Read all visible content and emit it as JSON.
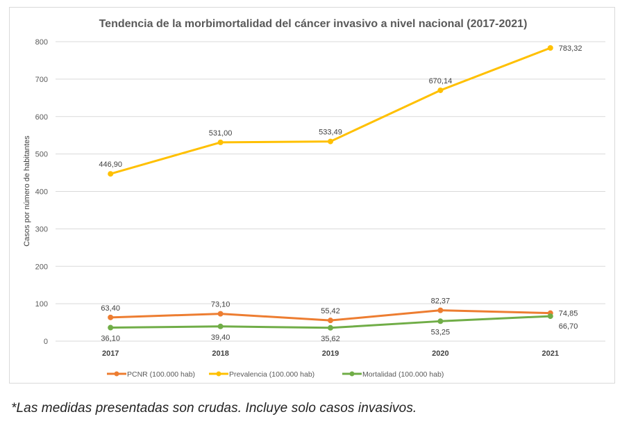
{
  "chart_data": {
    "type": "line",
    "title": "Tendencia de la morbimortalidad del cáncer invasivo a nivel nacional (2017-2021)",
    "xlabel": "",
    "ylabel": "Casos por número de habitantes",
    "categories": [
      "2017",
      "2018",
      "2019",
      "2020",
      "2021"
    ],
    "ylim": [
      0,
      800
    ],
    "yticks": [
      0,
      100,
      200,
      300,
      400,
      500,
      600,
      700,
      800
    ],
    "grid": true,
    "legend_position": "bottom",
    "series": [
      {
        "name": "PCNR (100.000 hab)",
        "color": "#ED7D31",
        "values": [
          63.4,
          73.1,
          55.42,
          82.37,
          74.85
        ],
        "labels": [
          "63,40",
          "73,10",
          "55,42",
          "82,37",
          "74,85"
        ],
        "label_position": "above"
      },
      {
        "name": "Prevalencia (100.000 hab)",
        "color": "#FFC000",
        "values": [
          446.9,
          531.0,
          533.49,
          670.14,
          783.32
        ],
        "labels": [
          "446,90",
          "531,00",
          "533,49",
          "670,14",
          "783,32"
        ],
        "label_position": "above"
      },
      {
        "name": "Mortalidad (100.000 hab)",
        "color": "#70AD47",
        "values": [
          36.1,
          39.4,
          35.62,
          53.25,
          66.7
        ],
        "labels": [
          "36,10",
          "39,40",
          "35,62",
          "53,25",
          "66,70"
        ],
        "label_position": "below"
      }
    ]
  },
  "footnote": "*Las medidas presentadas son crudas. Incluye solo casos invasivos."
}
